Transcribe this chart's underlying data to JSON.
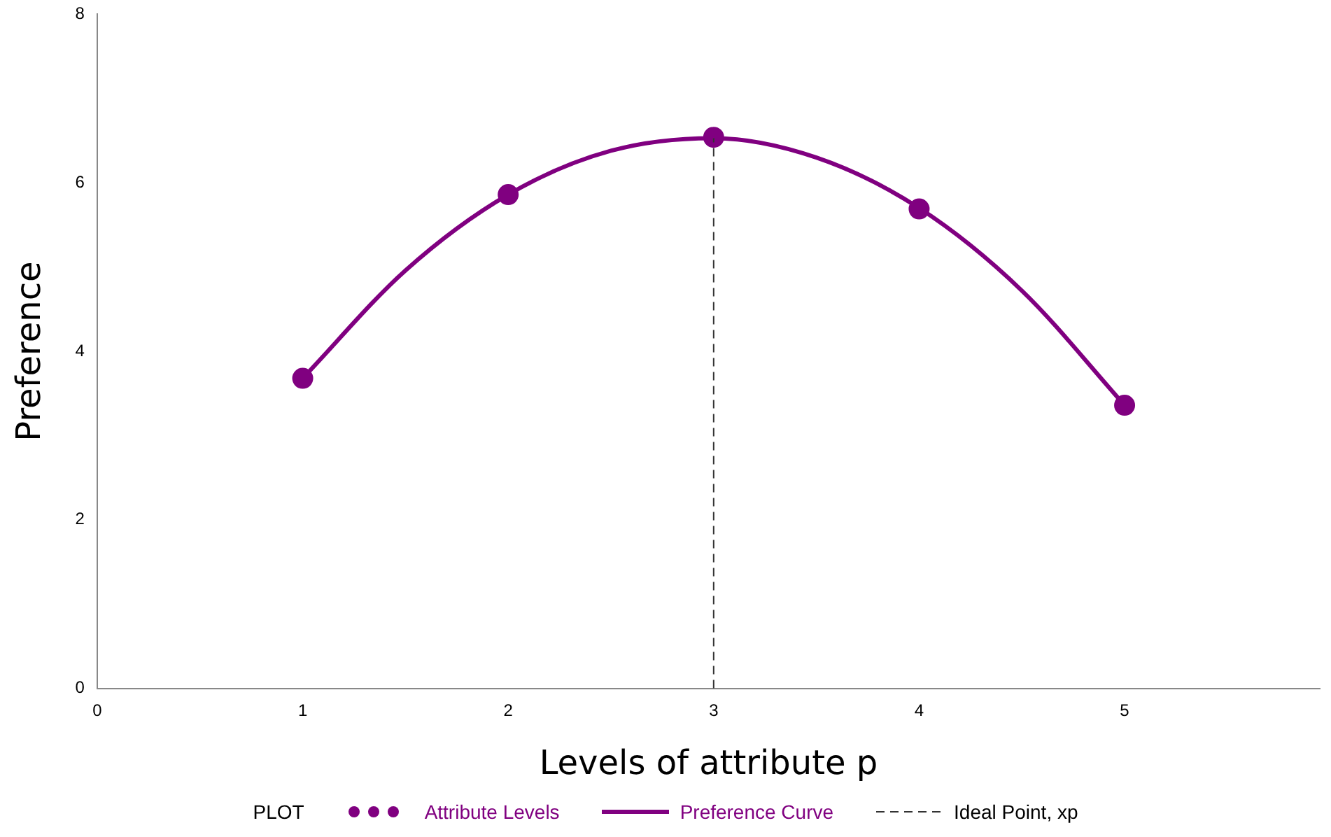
{
  "chart_data": {
    "type": "scatter",
    "xlabel": "Levels of attribute p",
    "ylabel": "Preference",
    "legend_title": "PLOT",
    "legend": "bottom",
    "grid": false,
    "xlim": [
      0,
      5.95
    ],
    "xticks": [
      0,
      1,
      2,
      3,
      4,
      5
    ],
    "ylim": [
      0,
      8
    ],
    "yticks": [
      0,
      2,
      4,
      6,
      8
    ],
    "series": [
      {
        "name": "Attribute Levels",
        "marker": "circle",
        "color": "#800080",
        "x": [
          1,
          2,
          3,
          4,
          5
        ],
        "values": [
          3.68,
          5.86,
          6.54,
          5.69,
          3.36
        ]
      },
      {
        "name": "Preference Curve",
        "type": "line",
        "marker": "none",
        "line_style": "solid",
        "color": "#800080",
        "x": [
          1,
          1.5,
          2,
          2.5,
          3,
          3.5,
          4,
          4.5,
          5
        ],
        "values": [
          3.68,
          4.96,
          5.86,
          6.38,
          6.53,
          6.3,
          5.7,
          4.72,
          3.36
        ]
      }
    ],
    "ref_lines": [
      {
        "axis": "x",
        "value": 3,
        "label": "Ideal Point, xp",
        "color": "#333333",
        "line_style": "dashed"
      }
    ]
  }
}
